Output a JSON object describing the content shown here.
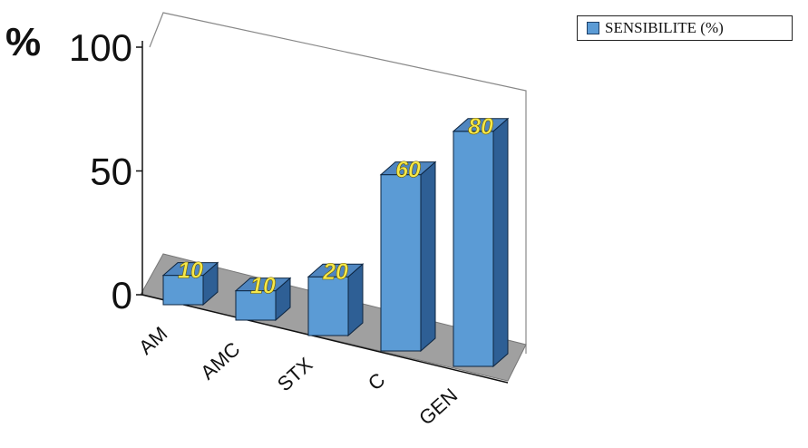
{
  "chart_data": {
    "type": "bar",
    "style": "3d-column",
    "categories": [
      "AM",
      "AMC",
      "STX",
      "C",
      "GEN"
    ],
    "values": [
      10,
      10,
      20,
      60,
      80
    ],
    "data_labels": [
      "10",
      "10",
      "20",
      "60",
      "80"
    ],
    "ylabel": "%",
    "yticks": [
      "0",
      "50",
      "100"
    ],
    "ylim": [
      0,
      100
    ],
    "legend": {
      "entries": [
        "SENSIBILITE (%)"
      ],
      "position": "top-right"
    },
    "grid": false,
    "colors": {
      "bar_front": "#5b9bd5",
      "bar_top": "#4f86c0",
      "bar_side": "#2e5f95",
      "floor": "#a0a0a0",
      "data_label": "#f5e84a"
    }
  }
}
